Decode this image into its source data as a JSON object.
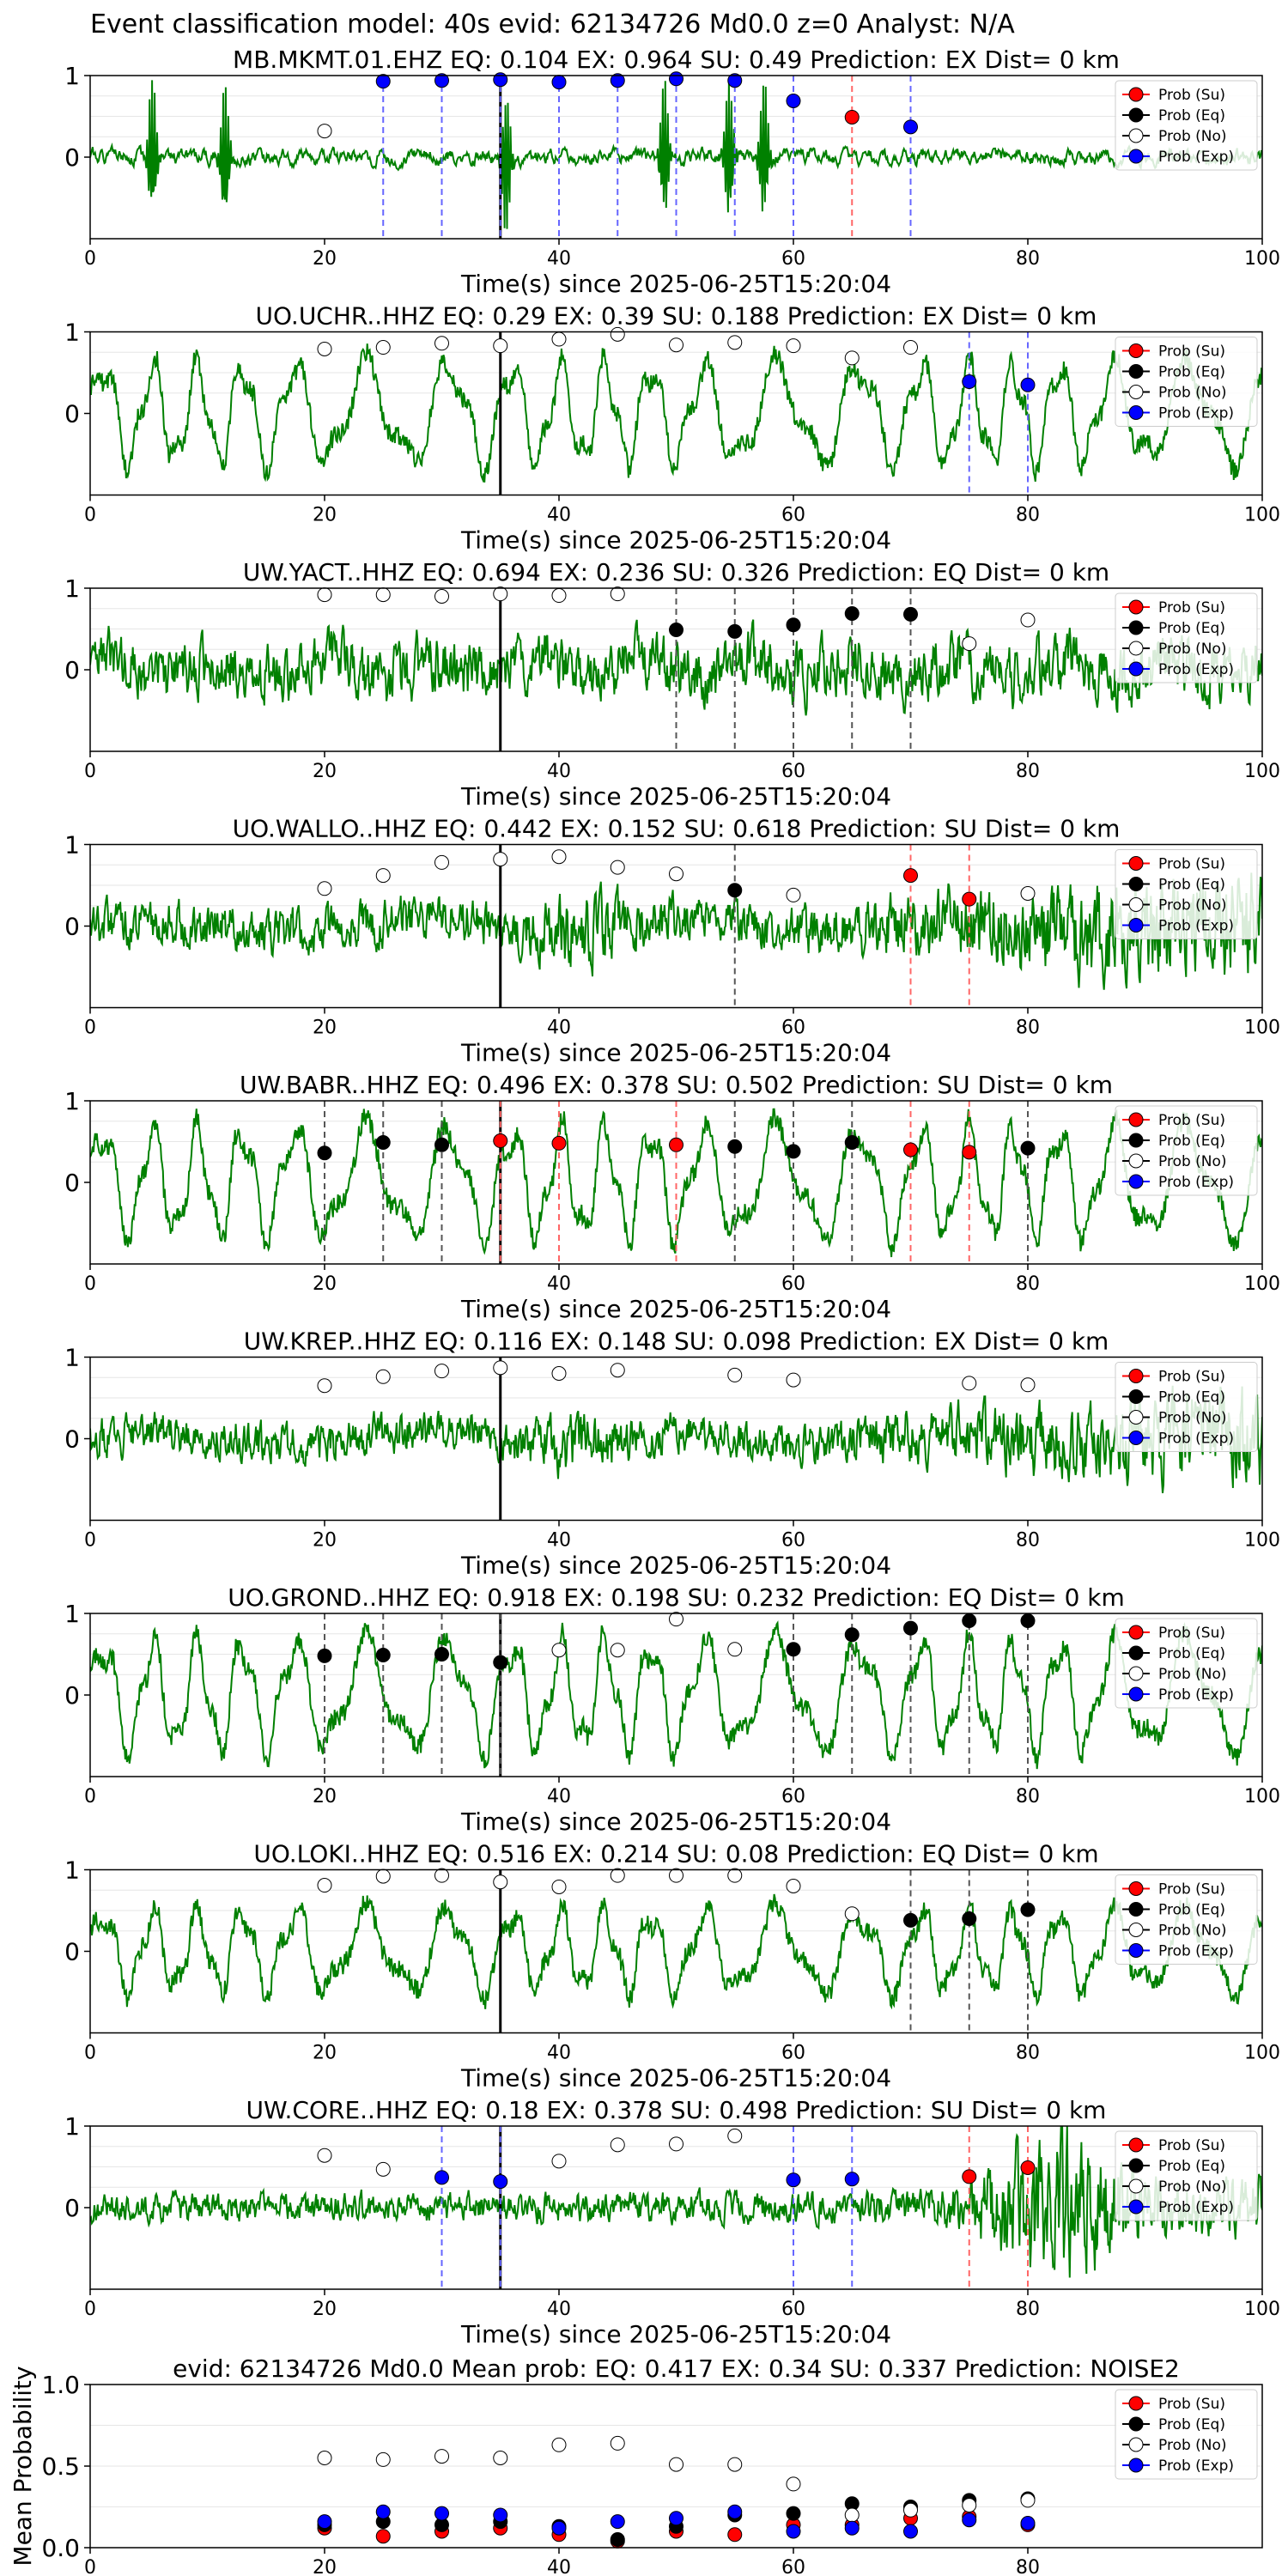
{
  "suptitle": "Event classification model: 40s evid: 62134726 Md0.0 z=0 Analyst: N/A",
  "colors": {
    "trace": "#008000",
    "su": "#ff0000",
    "eq": "#000000",
    "no": "#ffffff",
    "exp": "#0000ff",
    "su_line": "#ff6666",
    "eq_line": "#555555",
    "exp_line": "#6666ff",
    "grid": "#e6e6e6"
  },
  "legend_labels": [
    "Prob (Su)",
    "Prob (Eq)",
    "Prob (No)",
    "Prob (Exp)"
  ],
  "chart_data": [
    {
      "type": "scatter",
      "title": "MB.MKMT.01.EHZ   EQ: 0.104  EX: 0.964  SU: 0.49   Prediction: EX    Dist= 0 km",
      "xlabel": "Time(s) since 2025-06-25T15:20:04",
      "xlim": [
        0,
        100
      ],
      "ylim": [
        -1,
        1
      ],
      "xticks": [
        "0",
        "20",
        "40",
        "60",
        "80",
        "100"
      ],
      "yticks": [
        "0",
        "1"
      ],
      "pick_time": 35,
      "legend": "top-right",
      "trace": {
        "seed": 1,
        "style": "spiky",
        "amp": 0.18
      },
      "points": [
        {
          "x": 20,
          "y": 0.32,
          "cls": "no"
        },
        {
          "x": 25,
          "y": 0.93,
          "cls": "exp"
        },
        {
          "x": 30,
          "y": 0.94,
          "cls": "exp"
        },
        {
          "x": 35,
          "y": 0.95,
          "cls": "exp"
        },
        {
          "x": 40,
          "y": 0.92,
          "cls": "exp"
        },
        {
          "x": 45,
          "y": 0.94,
          "cls": "exp"
        },
        {
          "x": 50,
          "y": 0.96,
          "cls": "exp"
        },
        {
          "x": 55,
          "y": 0.94,
          "cls": "exp"
        },
        {
          "x": 60,
          "y": 0.69,
          "cls": "exp"
        },
        {
          "x": 65,
          "y": 0.49,
          "cls": "su"
        },
        {
          "x": 70,
          "y": 0.37,
          "cls": "exp"
        }
      ]
    },
    {
      "type": "scatter",
      "title": "UO.UCHR..HHZ   EQ: 0.29  EX: 0.39  SU: 0.188   Prediction: EX    Dist= 0 km",
      "xlabel": "Time(s) since 2025-06-25T15:20:04",
      "xlim": [
        0,
        100
      ],
      "ylim": [
        -1,
        1
      ],
      "xticks": [
        "0",
        "20",
        "40",
        "60",
        "80",
        "100"
      ],
      "yticks": [
        "0",
        "1"
      ],
      "pick_time": 35,
      "legend": "top-right",
      "trace": {
        "seed": 2,
        "style": "wave",
        "amp": 0.55
      },
      "points": [
        {
          "x": 20,
          "y": 0.79,
          "cls": "no"
        },
        {
          "x": 25,
          "y": 0.81,
          "cls": "no"
        },
        {
          "x": 30,
          "y": 0.86,
          "cls": "no"
        },
        {
          "x": 35,
          "y": 0.83,
          "cls": "no"
        },
        {
          "x": 40,
          "y": 0.91,
          "cls": "no"
        },
        {
          "x": 45,
          "y": 0.97,
          "cls": "no"
        },
        {
          "x": 50,
          "y": 0.84,
          "cls": "no"
        },
        {
          "x": 55,
          "y": 0.87,
          "cls": "no"
        },
        {
          "x": 60,
          "y": 0.83,
          "cls": "no"
        },
        {
          "x": 65,
          "y": 0.68,
          "cls": "no"
        },
        {
          "x": 70,
          "y": 0.81,
          "cls": "no"
        },
        {
          "x": 75,
          "y": 0.39,
          "cls": "exp"
        },
        {
          "x": 80,
          "y": 0.35,
          "cls": "exp"
        }
      ]
    },
    {
      "type": "scatter",
      "title": "UW.YACT..HHZ   EQ: 0.694  EX: 0.236  SU: 0.326   Prediction: EQ    Dist= 0 km",
      "xlabel": "Time(s) since 2025-06-25T15:20:04",
      "xlim": [
        0,
        100
      ],
      "ylim": [
        -1,
        1
      ],
      "xticks": [
        "0",
        "20",
        "40",
        "60",
        "80",
        "100"
      ],
      "yticks": [
        "0",
        "1"
      ],
      "pick_time": 35,
      "legend": "top-right",
      "trace": {
        "seed": 3,
        "style": "noisy",
        "amp": 0.45
      },
      "points": [
        {
          "x": 20,
          "y": 0.92,
          "cls": "no"
        },
        {
          "x": 25,
          "y": 0.92,
          "cls": "no"
        },
        {
          "x": 30,
          "y": 0.9,
          "cls": "no"
        },
        {
          "x": 35,
          "y": 0.93,
          "cls": "no"
        },
        {
          "x": 40,
          "y": 0.91,
          "cls": "no"
        },
        {
          "x": 45,
          "y": 0.93,
          "cls": "no"
        },
        {
          "x": 50,
          "y": 0.49,
          "cls": "eq"
        },
        {
          "x": 55,
          "y": 0.47,
          "cls": "eq"
        },
        {
          "x": 60,
          "y": 0.55,
          "cls": "eq"
        },
        {
          "x": 65,
          "y": 0.69,
          "cls": "eq"
        },
        {
          "x": 70,
          "y": 0.68,
          "cls": "eq"
        },
        {
          "x": 75,
          "y": 0.32,
          "cls": "no"
        },
        {
          "x": 80,
          "y": 0.61,
          "cls": "no"
        }
      ]
    },
    {
      "type": "scatter",
      "title": "UO.WALLO..HHZ   EQ: 0.442  EX: 0.152  SU: 0.618   Prediction: SU    Dist= 0 km",
      "xlabel": "Time(s) since 2025-06-25T15:20:04",
      "xlim": [
        0,
        100
      ],
      "ylim": [
        -1,
        1
      ],
      "xticks": [
        "0",
        "20",
        "40",
        "60",
        "80",
        "100"
      ],
      "yticks": [
        "0",
        "1"
      ],
      "pick_time": 35,
      "legend": "top-right",
      "trace": {
        "seed": 4,
        "style": "growing",
        "amp": 0.35
      },
      "points": [
        {
          "x": 20,
          "y": 0.46,
          "cls": "no"
        },
        {
          "x": 25,
          "y": 0.62,
          "cls": "no"
        },
        {
          "x": 30,
          "y": 0.78,
          "cls": "no"
        },
        {
          "x": 35,
          "y": 0.82,
          "cls": "no"
        },
        {
          "x": 40,
          "y": 0.85,
          "cls": "no"
        },
        {
          "x": 45,
          "y": 0.72,
          "cls": "no"
        },
        {
          "x": 50,
          "y": 0.64,
          "cls": "no"
        },
        {
          "x": 55,
          "y": 0.44,
          "cls": "eq"
        },
        {
          "x": 60,
          "y": 0.38,
          "cls": "no"
        },
        {
          "x": 70,
          "y": 0.62,
          "cls": "su"
        },
        {
          "x": 75,
          "y": 0.33,
          "cls": "su"
        },
        {
          "x": 80,
          "y": 0.4,
          "cls": "no"
        }
      ]
    },
    {
      "type": "scatter",
      "title": "UW.BABR..HHZ   EQ: 0.496  EX: 0.378  SU: 0.502   Prediction: SU    Dist= 0 km",
      "xlabel": "Time(s) since 2025-06-25T15:20:04",
      "xlim": [
        0,
        100
      ],
      "ylim": [
        -1,
        1
      ],
      "xticks": [
        "0",
        "20",
        "40",
        "60",
        "80",
        "100"
      ],
      "yticks": [
        "0",
        "1"
      ],
      "pick_time": 35,
      "legend": "top-right",
      "trace": {
        "seed": 5,
        "style": "wave",
        "amp": 0.6
      },
      "points": [
        {
          "x": 20,
          "y": 0.36,
          "cls": "eq"
        },
        {
          "x": 25,
          "y": 0.49,
          "cls": "eq"
        },
        {
          "x": 30,
          "y": 0.46,
          "cls": "eq"
        },
        {
          "x": 35,
          "y": 0.51,
          "cls": "su"
        },
        {
          "x": 40,
          "y": 0.48,
          "cls": "su"
        },
        {
          "x": 50,
          "y": 0.46,
          "cls": "su"
        },
        {
          "x": 55,
          "y": 0.44,
          "cls": "eq"
        },
        {
          "x": 60,
          "y": 0.38,
          "cls": "eq"
        },
        {
          "x": 65,
          "y": 0.49,
          "cls": "eq"
        },
        {
          "x": 70,
          "y": 0.4,
          "cls": "su"
        },
        {
          "x": 75,
          "y": 0.37,
          "cls": "su"
        },
        {
          "x": 80,
          "y": 0.42,
          "cls": "eq"
        }
      ]
    },
    {
      "type": "scatter",
      "title": "UW.KREP..HHZ   EQ: 0.116  EX: 0.148  SU: 0.098   Prediction: EX    Dist= 0 km",
      "xlabel": "Time(s) since 2025-06-25T15:20:04",
      "xlim": [
        0,
        100
      ],
      "ylim": [
        -1,
        1
      ],
      "xticks": [
        "0",
        "20",
        "40",
        "60",
        "80",
        "100"
      ],
      "yticks": [
        "0",
        "1"
      ],
      "pick_time": 35,
      "legend": "top-right",
      "trace": {
        "seed": 6,
        "style": "growing",
        "amp": 0.3
      },
      "points": [
        {
          "x": 20,
          "y": 0.65,
          "cls": "no"
        },
        {
          "x": 25,
          "y": 0.76,
          "cls": "no"
        },
        {
          "x": 30,
          "y": 0.83,
          "cls": "no"
        },
        {
          "x": 35,
          "y": 0.87,
          "cls": "no"
        },
        {
          "x": 40,
          "y": 0.8,
          "cls": "no"
        },
        {
          "x": 45,
          "y": 0.84,
          "cls": "no"
        },
        {
          "x": 55,
          "y": 0.78,
          "cls": "no"
        },
        {
          "x": 60,
          "y": 0.72,
          "cls": "no"
        },
        {
          "x": 75,
          "y": 0.68,
          "cls": "no"
        },
        {
          "x": 80,
          "y": 0.66,
          "cls": "no"
        }
      ]
    },
    {
      "type": "scatter",
      "title": "UO.GROND..HHZ   EQ: 0.918  EX: 0.198  SU: 0.232   Prediction: EQ    Dist= 0 km",
      "xlabel": "Time(s) since 2025-06-25T15:20:04",
      "xlim": [
        0,
        100
      ],
      "ylim": [
        -1,
        1
      ],
      "xticks": [
        "0",
        "20",
        "40",
        "60",
        "80",
        "100"
      ],
      "yticks": [
        "0",
        "1"
      ],
      "pick_time": 35,
      "legend": "top-right",
      "trace": {
        "seed": 7,
        "style": "wave",
        "amp": 0.6
      },
      "points": [
        {
          "x": 20,
          "y": 0.48,
          "cls": "eq"
        },
        {
          "x": 25,
          "y": 0.49,
          "cls": "eq"
        },
        {
          "x": 30,
          "y": 0.5,
          "cls": "eq"
        },
        {
          "x": 35,
          "y": 0.4,
          "cls": "eq"
        },
        {
          "x": 40,
          "y": 0.55,
          "cls": "no"
        },
        {
          "x": 45,
          "y": 0.55,
          "cls": "no"
        },
        {
          "x": 50,
          "y": 0.93,
          "cls": "no"
        },
        {
          "x": 55,
          "y": 0.56,
          "cls": "no"
        },
        {
          "x": 60,
          "y": 0.56,
          "cls": "eq"
        },
        {
          "x": 65,
          "y": 0.74,
          "cls": "eq"
        },
        {
          "x": 70,
          "y": 0.82,
          "cls": "eq"
        },
        {
          "x": 75,
          "y": 0.91,
          "cls": "eq"
        },
        {
          "x": 80,
          "y": 0.91,
          "cls": "eq"
        }
      ]
    },
    {
      "type": "scatter",
      "title": "UO.LOKI..HHZ   EQ: 0.516  EX: 0.214  SU: 0.08   Prediction: EQ    Dist= 0 km",
      "xlabel": "Time(s) since 2025-06-25T15:20:04",
      "xlim": [
        0,
        100
      ],
      "ylim": [
        -1,
        1
      ],
      "xticks": [
        "0",
        "20",
        "40",
        "60",
        "80",
        "100"
      ],
      "yticks": [
        "0",
        "1"
      ],
      "pick_time": 35,
      "legend": "top-right",
      "trace": {
        "seed": 8,
        "style": "wave",
        "amp": 0.45
      },
      "points": [
        {
          "x": 20,
          "y": 0.81,
          "cls": "no"
        },
        {
          "x": 25,
          "y": 0.92,
          "cls": "no"
        },
        {
          "x": 30,
          "y": 0.93,
          "cls": "no"
        },
        {
          "x": 35,
          "y": 0.85,
          "cls": "no"
        },
        {
          "x": 40,
          "y": 0.79,
          "cls": "no"
        },
        {
          "x": 45,
          "y": 0.93,
          "cls": "no"
        },
        {
          "x": 50,
          "y": 0.93,
          "cls": "no"
        },
        {
          "x": 55,
          "y": 0.93,
          "cls": "no"
        },
        {
          "x": 60,
          "y": 0.8,
          "cls": "no"
        },
        {
          "x": 65,
          "y": 0.46,
          "cls": "no"
        },
        {
          "x": 70,
          "y": 0.38,
          "cls": "eq"
        },
        {
          "x": 75,
          "y": 0.4,
          "cls": "eq"
        },
        {
          "x": 80,
          "y": 0.51,
          "cls": "eq"
        }
      ]
    },
    {
      "type": "scatter",
      "title": "UW.CORE..HHZ   EQ: 0.18  EX: 0.378  SU: 0.498   Prediction: SU    Dist= 0 km",
      "xlabel": "Time(s) since 2025-06-25T15:20:04",
      "xlim": [
        0,
        100
      ],
      "ylim": [
        -1,
        1
      ],
      "xticks": [
        "0",
        "20",
        "40",
        "60",
        "80",
        "100"
      ],
      "yticks": [
        "0",
        "1"
      ],
      "pick_time": 35,
      "legend": "top-right",
      "trace": {
        "seed": 9,
        "style": "burst",
        "amp": 0.22
      },
      "points": [
        {
          "x": 20,
          "y": 0.64,
          "cls": "no"
        },
        {
          "x": 25,
          "y": 0.47,
          "cls": "no"
        },
        {
          "x": 30,
          "y": 0.37,
          "cls": "exp"
        },
        {
          "x": 35,
          "y": 0.32,
          "cls": "exp"
        },
        {
          "x": 40,
          "y": 0.57,
          "cls": "no"
        },
        {
          "x": 45,
          "y": 0.77,
          "cls": "no"
        },
        {
          "x": 50,
          "y": 0.78,
          "cls": "no"
        },
        {
          "x": 55,
          "y": 0.88,
          "cls": "no"
        },
        {
          "x": 60,
          "y": 0.34,
          "cls": "exp"
        },
        {
          "x": 65,
          "y": 0.35,
          "cls": "exp"
        },
        {
          "x": 75,
          "y": 0.38,
          "cls": "su"
        },
        {
          "x": 80,
          "y": 0.49,
          "cls": "su"
        }
      ]
    },
    {
      "type": "scatter",
      "title": "evid: 62134726  Md0.0   Mean prob:   EQ: 0.417  EX: 0.34  SU: 0.337   Prediction: NOISE2",
      "ylabel": "Mean Probability",
      "xlim": [
        0,
        100
      ],
      "ylim": [
        0,
        1
      ],
      "xticks": [
        "0",
        "20",
        "40",
        "60",
        "80"
      ],
      "yticks": [
        "0.0",
        "0.5",
        "1.0"
      ],
      "legend": "top-right",
      "series": [
        {
          "name": "Prob (Su)",
          "cls": "su",
          "x": [
            20,
            25,
            30,
            35,
            40,
            45,
            50,
            55,
            60,
            65,
            70,
            75,
            80
          ],
          "y": [
            0.12,
            0.07,
            0.1,
            0.12,
            0.08,
            0.04,
            0.1,
            0.08,
            0.14,
            0.14,
            0.18,
            0.19,
            0.14
          ]
        },
        {
          "name": "Prob (Eq)",
          "cls": "eq",
          "x": [
            20,
            25,
            30,
            35,
            40,
            45,
            50,
            55,
            60,
            65,
            70,
            75,
            80
          ],
          "y": [
            0.14,
            0.16,
            0.14,
            0.16,
            0.13,
            0.05,
            0.13,
            0.2,
            0.21,
            0.27,
            0.25,
            0.29,
            0.3
          ]
        },
        {
          "name": "Prob (No)",
          "cls": "no",
          "x": [
            20,
            25,
            30,
            35,
            40,
            45,
            50,
            55,
            60,
            65,
            70,
            75,
            80
          ],
          "y": [
            0.55,
            0.54,
            0.56,
            0.55,
            0.63,
            0.64,
            0.51,
            0.51,
            0.39,
            0.2,
            0.23,
            0.26,
            0.29
          ]
        },
        {
          "name": "Prob (Exp)",
          "cls": "exp",
          "x": [
            20,
            25,
            30,
            35,
            40,
            45,
            50,
            55,
            60,
            65,
            70,
            75,
            80
          ],
          "y": [
            0.16,
            0.22,
            0.21,
            0.2,
            0.12,
            0.16,
            0.18,
            0.22,
            0.1,
            0.12,
            0.1,
            0.17,
            0.15
          ]
        }
      ]
    }
  ]
}
